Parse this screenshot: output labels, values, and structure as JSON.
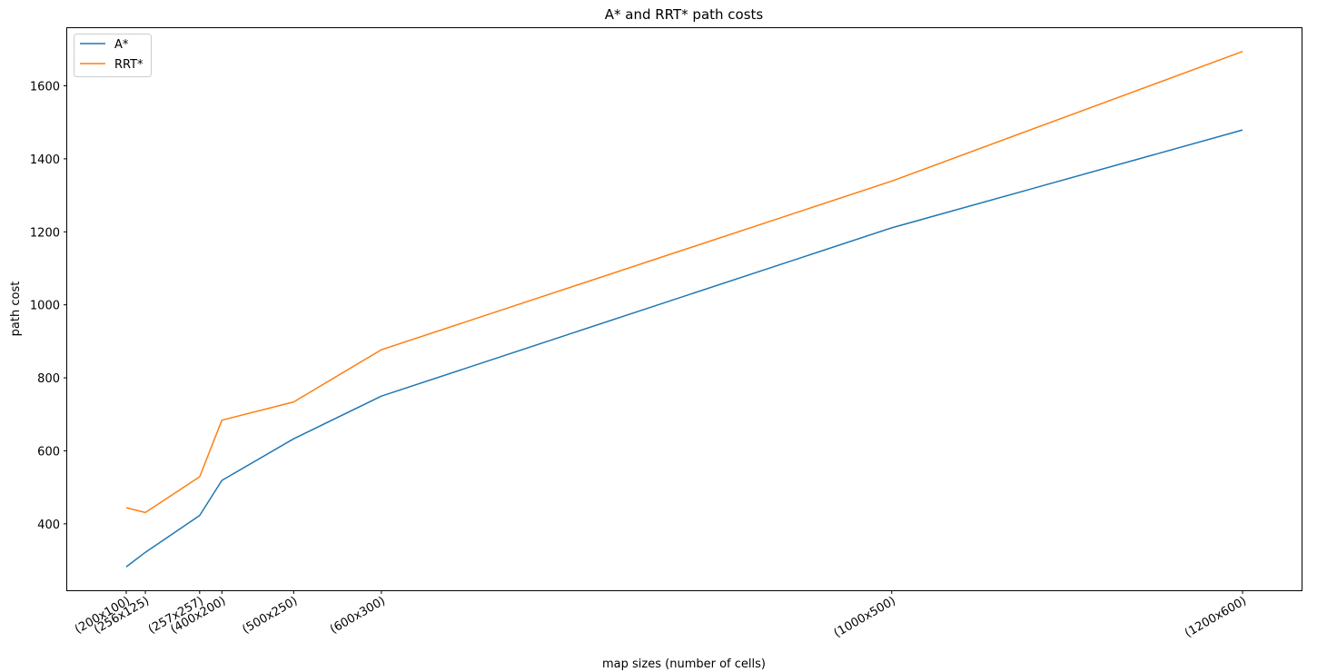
{
  "chart_data": {
    "type": "line",
    "title": "A* and RRT* path costs",
    "xlabel": "map sizes (number of cells)",
    "ylabel": "path cost",
    "x": [
      20000,
      32000,
      66049,
      80000,
      125000,
      180000,
      500000,
      720000
    ],
    "xticks": [
      "(200x100)",
      "(256x125)",
      "(257x257)",
      "(400x200)",
      "(500x250)",
      "(600x300)",
      "(1000x500)",
      "(1200x600)"
    ],
    "xlim": [
      -17000,
      757000
    ],
    "ylim": [
      218,
      1758
    ],
    "yticks": [
      400,
      600,
      800,
      1000,
      1200,
      1400,
      1600
    ],
    "grid": false,
    "legend_position": "top-left",
    "series": [
      {
        "name": "A*",
        "color": "#1f77b4",
        "values": [
          282,
          322,
          423,
          519,
          633,
          750,
          1211,
          1479
        ]
      },
      {
        "name": "RRT*",
        "color": "#ff7f0e",
        "values": [
          444,
          431,
          529,
          684,
          734,
          877,
          1339,
          1694
        ]
      }
    ]
  }
}
